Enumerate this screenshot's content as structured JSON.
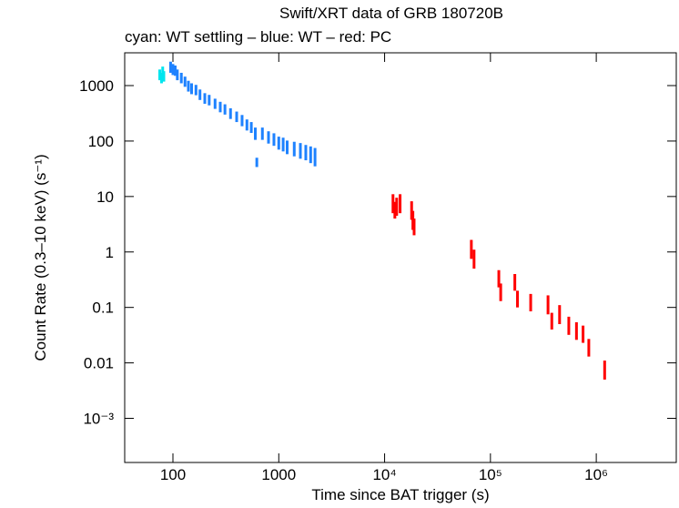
{
  "chart_data": {
    "type": "scatter",
    "title": "Swift/XRT data of GRB 180720B",
    "subtitle": "cyan: WT settling – blue: WT – red: PC",
    "x_label": "Time since BAT trigger (s)",
    "y_label": "Count Rate (0.3–10 keV) (s⁻¹)",
    "log_x": true,
    "log_y": true,
    "xlim": [
      35,
      5700000
    ],
    "ylim": [
      0.00016,
      3900
    ],
    "xticks": [
      100,
      1000,
      {
        "value": 10000,
        "label": "10⁴"
      },
      {
        "value": 100000,
        "label": "10⁵"
      },
      {
        "value": 1000000,
        "label": "10⁶"
      }
    ],
    "yticks": [
      1000,
      100,
      10,
      1,
      0.1,
      0.01,
      {
        "value": 0.001,
        "label": "10⁻³"
      }
    ],
    "series": [
      {
        "name": "WT settling",
        "color": "#00e5ee",
        "x": [
          75,
          78,
          80,
          82
        ],
        "values": [
          1600,
          1400,
          1800,
          1500
        ],
        "yerr": [
          350,
          300,
          400,
          320
        ]
      },
      {
        "name": "WT",
        "color": "#1e82ff",
        "x": [
          95,
          100,
          105,
          110,
          120,
          130,
          140,
          150,
          165,
          180,
          200,
          220,
          250,
          280,
          310,
          350,
          400,
          450,
          500,
          550,
          600,
          620,
          700,
          800,
          900,
          1000,
          1100,
          1200,
          1400,
          1600,
          1800,
          2000,
          2200
        ],
        "values": [
          2200,
          2000,
          1900,
          1600,
          1400,
          1200,
          1000,
          900,
          850,
          700,
          600,
          560,
          480,
          420,
          380,
          320,
          280,
          240,
          200,
          180,
          140,
          42,
          140,
          120,
          110,
          95,
          90,
          80,
          75,
          70,
          65,
          60,
          55
        ],
        "yerr": [
          500,
          450,
          400,
          350,
          300,
          250,
          220,
          200,
          180,
          150,
          130,
          120,
          100,
          90,
          80,
          70,
          60,
          55,
          45,
          40,
          35,
          8,
          35,
          30,
          28,
          25,
          25,
          22,
          22,
          22,
          20,
          20,
          20
        ]
      },
      {
        "name": "PC",
        "color": "#ff0000",
        "x": [
          12000,
          12500,
          13000,
          14000,
          18000,
          18500,
          19000,
          66000,
          70000,
          120000,
          125000,
          170000,
          180000,
          240000,
          350000,
          380000,
          450000,
          550000,
          650000,
          750000,
          850000,
          1200000
        ],
        "values": [
          8,
          6,
          7,
          8,
          6,
          4,
          3,
          1.2,
          0.8,
          0.35,
          0.2,
          0.3,
          0.15,
          0.13,
          0.12,
          0.06,
          0.08,
          0.05,
          0.04,
          0.035,
          0.02,
          0.008
        ],
        "yerr": [
          3,
          2,
          2.5,
          3,
          2.2,
          1.5,
          1,
          0.45,
          0.3,
          0.12,
          0.07,
          0.1,
          0.05,
          0.045,
          0.045,
          0.02,
          0.03,
          0.018,
          0.014,
          0.012,
          0.007,
          0.003
        ]
      }
    ]
  }
}
